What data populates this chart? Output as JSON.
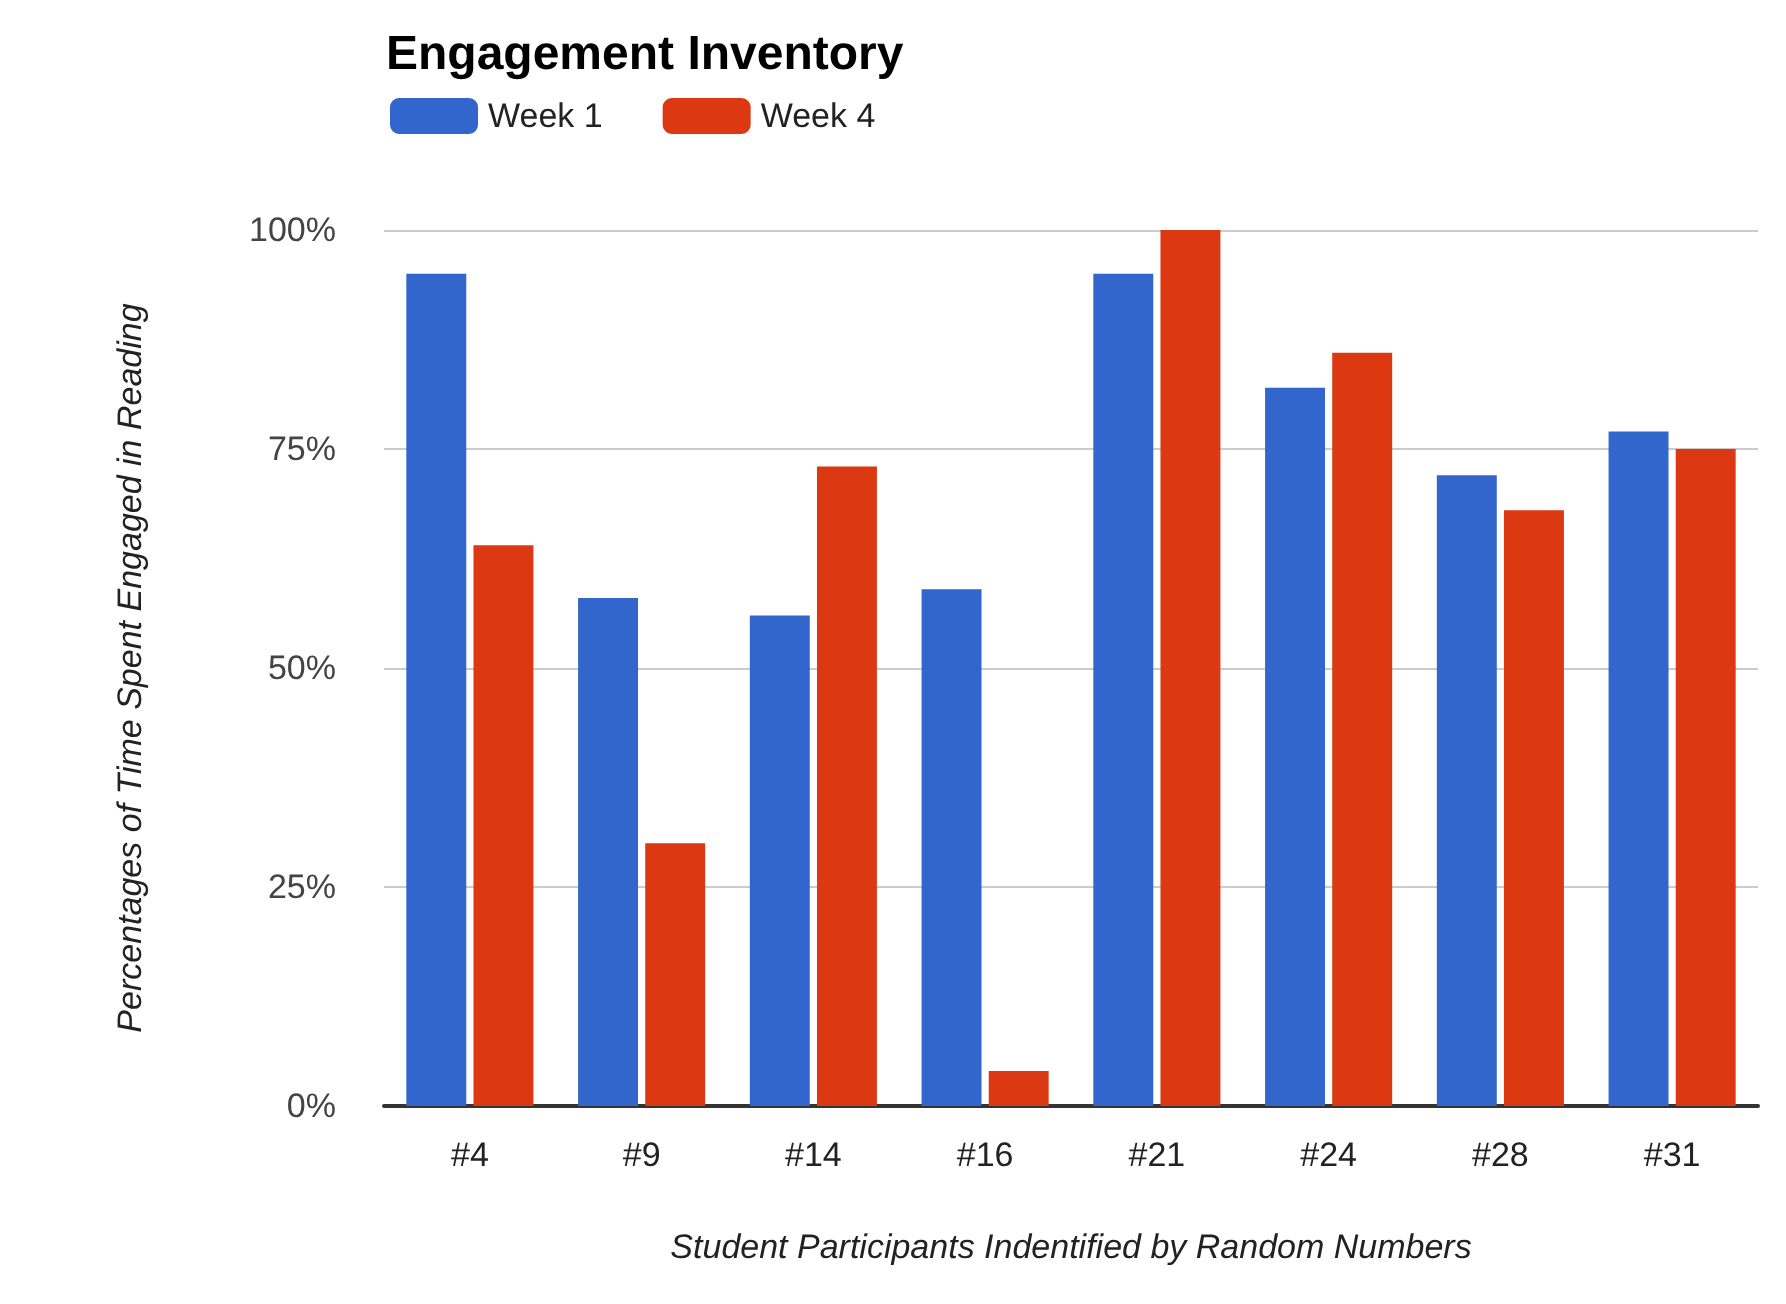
{
  "chart_data": {
    "type": "bar",
    "title": "Engagement Inventory",
    "xlabel": "Student Participants Indentified by Random Numbers",
    "ylabel": "Percentages of Time Spent Engaged in Reading",
    "categories": [
      "#4",
      "#9",
      "#14",
      "#16",
      "#21",
      "#24",
      "#28",
      "#31"
    ],
    "series": [
      {
        "name": "Week 1",
        "color": "#3366cc",
        "values": [
          95,
          58,
          56,
          59,
          95,
          82,
          72,
          77
        ]
      },
      {
        "name": "Week 4",
        "color": "#dc3912",
        "values": [
          64,
          30,
          73,
          4,
          100,
          86,
          68,
          75
        ]
      }
    ],
    "ylim": [
      0,
      100
    ],
    "yticks": [
      {
        "value": 0,
        "label": "0%"
      },
      {
        "value": 25,
        "label": "25%"
      },
      {
        "value": 50,
        "label": "50%"
      },
      {
        "value": 75,
        "label": "75%"
      },
      {
        "value": 100,
        "label": "100%"
      }
    ],
    "grid": "y",
    "legend": "top left"
  }
}
